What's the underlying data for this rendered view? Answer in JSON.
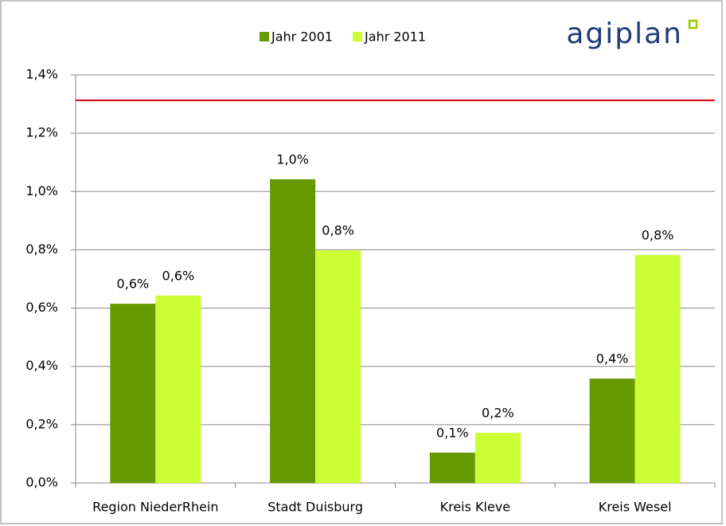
{
  "chart_data": {
    "type": "bar",
    "logo": "agiplan",
    "categories": [
      "Region NiederRhein",
      "Stadt Duisburg",
      "Kreis Kleve",
      "Kreis Wesel"
    ],
    "series": [
      {
        "name": "Jahr 2001",
        "color": "#669900",
        "values": [
          0.615,
          1.042,
          0.104,
          0.358
        ],
        "value_labels": [
          "0,6%",
          "1,0%",
          "0,1%",
          "0,4%"
        ]
      },
      {
        "name": "Jahr 2011",
        "color": "#ccff33",
        "values": [
          0.643,
          0.798,
          0.172,
          0.782
        ],
        "value_labels": [
          "0,6%",
          "0,8%",
          "0,2%",
          "0,8%"
        ]
      }
    ],
    "ylim": [
      0,
      1.4
    ],
    "yticks": [
      {
        "value": 0,
        "label": "0,0%"
      },
      {
        "value": 0.2,
        "label": "0,2%"
      },
      {
        "value": 0.4,
        "label": "0,4%"
      },
      {
        "value": 0.6,
        "label": "0,6%"
      },
      {
        "value": 0.8,
        "label": "0,8%"
      },
      {
        "value": 1.0,
        "label": "1,0%"
      },
      {
        "value": 1.2,
        "label": "1,2%"
      },
      {
        "value": 1.4,
        "label": "1,4%"
      }
    ],
    "grid": true,
    "reference_line": 1.313,
    "reference_color": "#cc0000",
    "legend": "top"
  }
}
